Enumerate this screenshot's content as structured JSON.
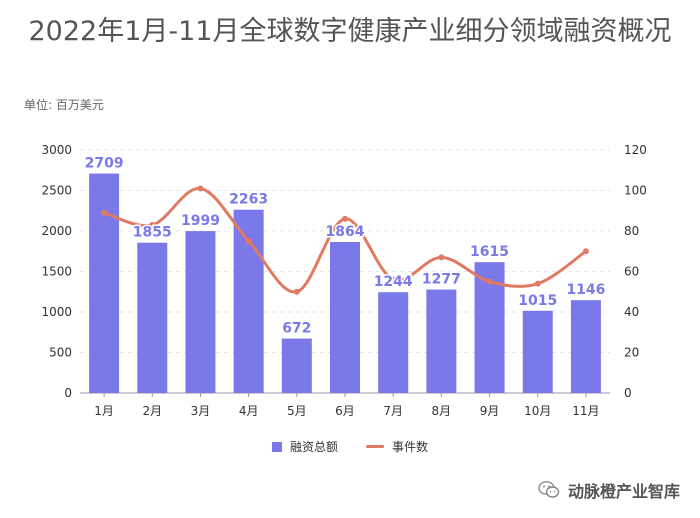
{
  "colors": {
    "bar": "#7b78e9",
    "line": "#e07a63",
    "bar_label": "#7b78e9",
    "axis_text": "#333333",
    "grid": "#e6e6e6"
  },
  "chart_data": {
    "type": "bar",
    "title": "2022年1月-11月全球数字健康产业细分领域融资概况",
    "unit_label": "单位: 百万美元",
    "categories": [
      "1月",
      "2月",
      "3月",
      "4月",
      "5月",
      "6月",
      "7月",
      "8月",
      "9月",
      "10月",
      "11月"
    ],
    "series": [
      {
        "name": "融资总额",
        "type": "bar",
        "axis": "left",
        "values": [
          2709,
          1855,
          1999,
          2263,
          672,
          1864,
          1244,
          1277,
          1615,
          1015,
          1146
        ]
      },
      {
        "name": "事件数",
        "type": "line",
        "axis": "right",
        "values": [
          89,
          83,
          101,
          75,
          50,
          86,
          56,
          67,
          55,
          54,
          70
        ]
      }
    ],
    "y_left": {
      "min": 0,
      "max": 3000,
      "ticks": [
        "0",
        "500",
        "1000",
        "1500",
        "2000",
        "2500",
        "3000"
      ]
    },
    "y_right": {
      "min": 0,
      "max": 120,
      "ticks": [
        "0",
        "20",
        "40",
        "60",
        "80",
        "100",
        "120"
      ]
    },
    "grid": true,
    "legend_position": "bottom-center"
  },
  "watermark": {
    "text": "动脉橙产业智库",
    "icon": "wechat-icon"
  }
}
